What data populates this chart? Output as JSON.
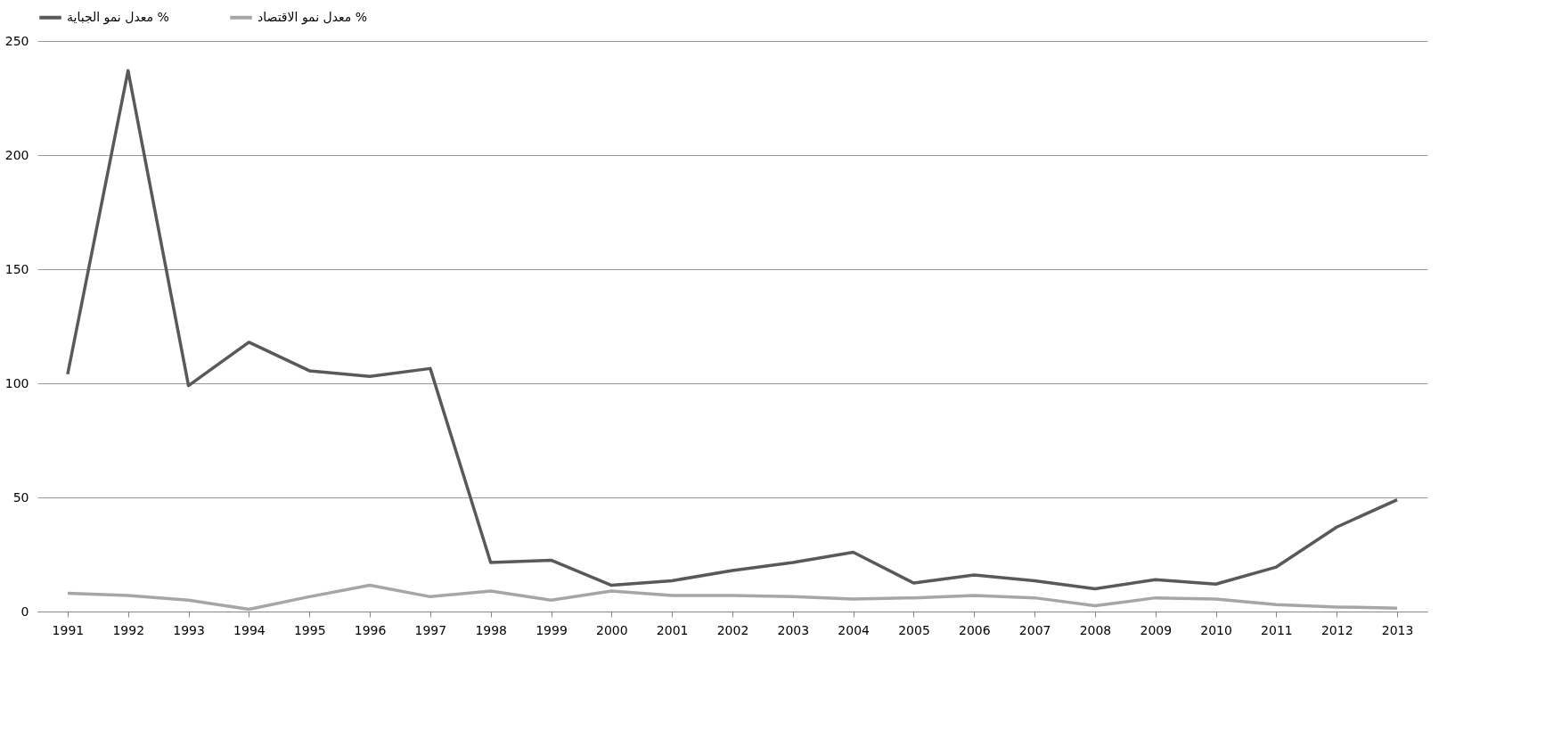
{
  "chart_data": {
    "type": "line",
    "categories": [
      "1991",
      "1992",
      "1993",
      "1994",
      "1995",
      "1996",
      "1997",
      "1998",
      "1999",
      "2000",
      "2001",
      "2002",
      "2003",
      "2004",
      "2005",
      "2006",
      "2007",
      "2008",
      "2009",
      "2010",
      "2011",
      "2012",
      "2013"
    ],
    "series": [
      {
        "name": "معدل نمو الجباية %",
        "color": "#595959",
        "values": [
          104,
          237,
          99,
          118,
          105.5,
          103,
          106.5,
          21.5,
          22.5,
          11.5,
          13.5,
          18,
          21.5,
          26,
          12.5,
          16,
          13.5,
          10,
          14,
          12,
          19.5,
          37,
          49
        ]
      },
      {
        "name": "معدل نمو الاقتصاد %",
        "color": "#a6a6a6",
        "values": [
          8,
          7,
          5,
          1,
          6.5,
          11.5,
          6.5,
          9,
          5,
          9,
          7,
          7,
          6.5,
          5.5,
          6,
          7,
          6,
          2.5,
          6,
          5.5,
          3,
          2,
          1.5
        ]
      }
    ],
    "ylim": [
      0,
      250
    ],
    "yticks": [
      0,
      50,
      100,
      150,
      200,
      250
    ],
    "grid": "y",
    "legend": "top",
    "marker": "none",
    "line_style": "solid"
  }
}
